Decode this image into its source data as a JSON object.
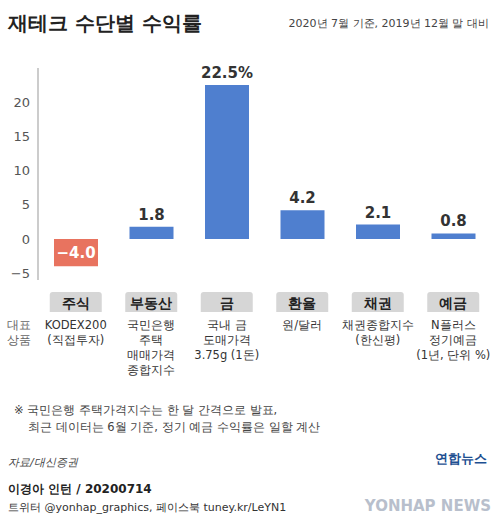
{
  "chart_data": {
    "type": "bar",
    "title": "재테크 수단별 수익률",
    "subtitle": "2020년 7월 기준, 2019년 12월 말 대비",
    "categories": [
      "주식",
      "부동산",
      "금",
      "환율",
      "채권",
      "예금"
    ],
    "values": [
      -4.0,
      1.8,
      22.5,
      4.2,
      2.1,
      0.8
    ],
    "value_labels": [
      "−4.0",
      "1.8",
      "22.5%",
      "4.2",
      "2.1",
      "0.8"
    ],
    "colors": [
      "#e8735f",
      "#4f7fcf",
      "#4f7fcf",
      "#4f7fcf",
      "#4f7fcf",
      "#4f7fcf"
    ],
    "ylim": [
      -6,
      25
    ],
    "yticks": [
      {
        "value": -5,
        "label": "−5"
      },
      0,
      5,
      10,
      15,
      20
    ],
    "grid": false,
    "data_labels": true,
    "row_label": "대표 상품",
    "products": [
      [
        "KODEX200",
        "(직접투자)"
      ],
      [
        "국민은행",
        "주택 매매가격",
        "종합지수"
      ],
      [
        "국내 금",
        "도매가격",
        "3.75g (1돈)"
      ],
      [
        "원/달러"
      ],
      [
        "채권종합지수",
        "(한신평)"
      ],
      [
        "N플러스",
        "정기예금",
        "(1년, 단위 %)"
      ]
    ],
    "notes": [
      "※ 국민은행 주택가격지수는 한 달 간격으로 발표,",
      "최근 데이터는 6월 기준, 정기 예금 수익률은 일할 계산"
    ],
    "source": "자료/대신증권",
    "credit": "이경아 인턴 / 20200714",
    "social": "트위터 @yonhap_graphics, 페이스북 tuney.kr/LeYN1",
    "logo": "연합뉴스",
    "watermark": "YONHAP NEWS"
  }
}
